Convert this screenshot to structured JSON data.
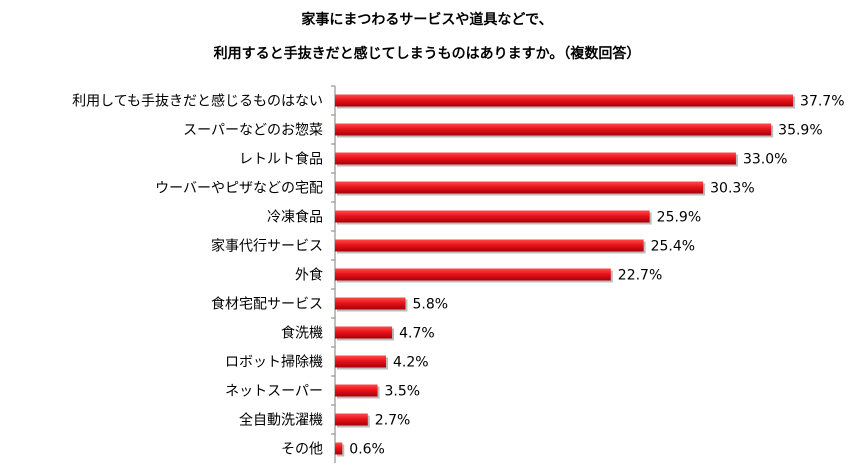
{
  "chart_data": {
    "type": "bar",
    "orientation": "horizontal",
    "title_lines": [
      "家事にまつわるサービスや道具などで、",
      "利用すると手抜きだと感じてしまうものはありますか。（複数回答）"
    ],
    "categories": [
      "利用しても手抜きだと感じるものはない",
      "スーパーなどのお惣菜",
      "レトルト食品",
      "ウーバーやピザなどの宅配",
      "冷凍食品",
      "家事代行サービス",
      "外食",
      "食材宅配サービス",
      "食洗機",
      "ロボット掃除機",
      "ネットスーパー",
      "全自動洗濯機",
      "その他"
    ],
    "values": [
      37.7,
      35.9,
      33.0,
      30.3,
      25.9,
      25.4,
      22.7,
      5.8,
      4.7,
      4.2,
      3.5,
      2.7,
      0.6
    ],
    "value_labels": [
      "37.7%",
      "35.9%",
      "33.0%",
      "30.3%",
      "25.9%",
      "25.4%",
      "22.7%",
      "5.8%",
      "4.7%",
      "4.2%",
      "3.5%",
      "2.7%",
      "0.6%"
    ],
    "xlim": [
      0,
      40
    ],
    "grid": false,
    "legend": "none",
    "bar_color": "#e8141b"
  }
}
